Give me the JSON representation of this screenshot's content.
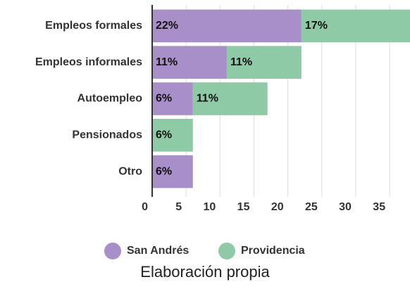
{
  "chart_data": {
    "type": "stacked-bar-horizontal",
    "categories": [
      "Empleos formales",
      "Empleos informales",
      "Autoempleo",
      "Pensionados",
      "Otro"
    ],
    "series": [
      {
        "name": "San Andrés",
        "color": "#a98fc9",
        "values": [
          22,
          11,
          6,
          null,
          6
        ],
        "value_labels": [
          "22%",
          "11%",
          "6%",
          null,
          "6%"
        ]
      },
      {
        "name": "Providencia",
        "color": "#8fcaa6",
        "values": [
          17,
          11,
          11,
          6,
          null
        ],
        "value_labels": [
          "17%",
          "11%",
          "11%",
          "6%",
          null
        ]
      }
    ],
    "xlim": [
      0,
      38
    ],
    "xticks": [
      0,
      5,
      10,
      15,
      20,
      25,
      30,
      35
    ],
    "grid": true,
    "legend": "bottom",
    "caption": "Elaboración propia"
  }
}
